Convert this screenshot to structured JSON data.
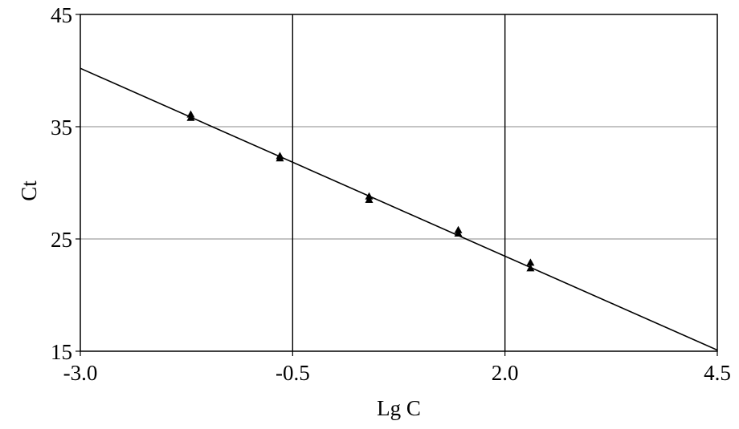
{
  "chart_data": {
    "type": "scatter",
    "title": "",
    "xlabel": "Lg C",
    "ylabel": "Ct",
    "xlim": [
      -3.0,
      4.5
    ],
    "ylim": [
      15,
      45
    ],
    "x_ticks": [
      "-3.0",
      "-0.5",
      "2.0",
      "4.5"
    ],
    "y_ticks": [
      "15",
      "25",
      "35",
      "45"
    ],
    "grid": {
      "horizontal_at": [
        25,
        35
      ],
      "vertical_at": [
        -0.5,
        2.0
      ]
    },
    "series": [
      {
        "type": "scatter",
        "marker": "triangle",
        "points": [
          {
            "x": -1.7,
            "y": 36.1
          },
          {
            "x": -1.7,
            "y": 35.8
          },
          {
            "x": -0.65,
            "y": 32.4
          },
          {
            "x": -0.65,
            "y": 32.2
          },
          {
            "x": 0.4,
            "y": 28.8
          },
          {
            "x": 0.4,
            "y": 28.5
          },
          {
            "x": 1.45,
            "y": 25.8
          },
          {
            "x": 1.45,
            "y": 25.5
          },
          {
            "x": 2.3,
            "y": 22.9
          },
          {
            "x": 2.3,
            "y": 22.4
          }
        ]
      },
      {
        "type": "line",
        "points": [
          {
            "x": -3.0,
            "y": 40.2
          },
          {
            "x": 4.5,
            "y": 15.1
          }
        ]
      }
    ],
    "colors": {
      "marks": "#000000",
      "grid_horizontal": "#a0a0a0",
      "grid_vertical": "#000000"
    }
  }
}
